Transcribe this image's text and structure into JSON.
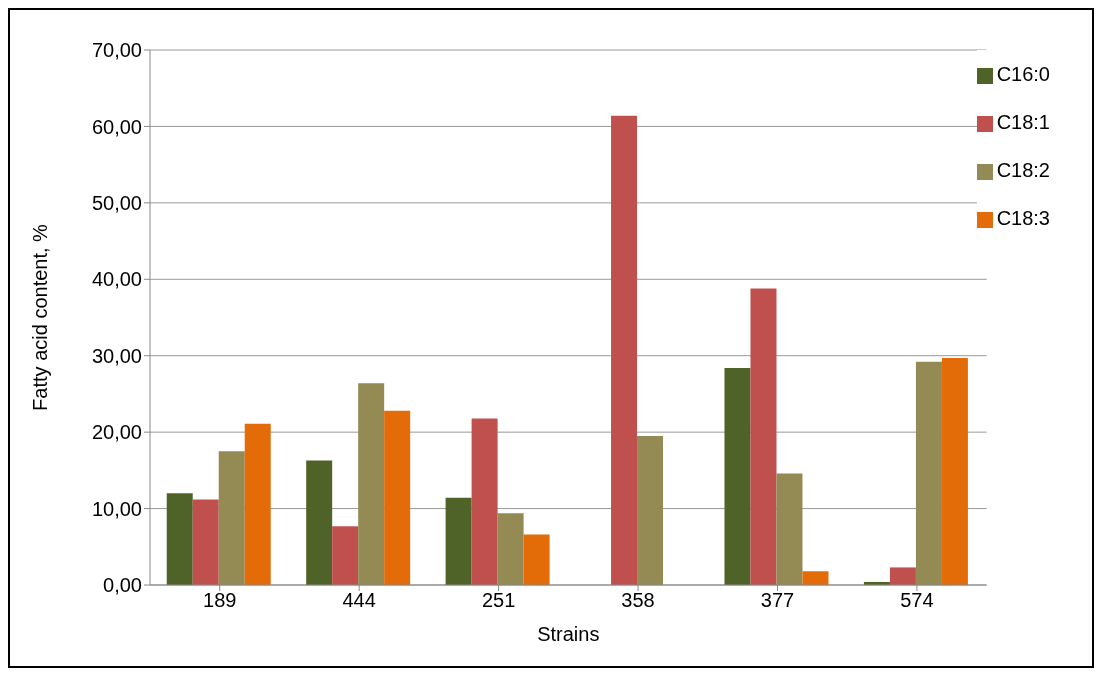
{
  "chart_data": {
    "type": "bar",
    "xlabel": "Strains",
    "ylabel": "Fatty acid content, %",
    "categories": [
      "189",
      "444",
      "251",
      "358",
      "377",
      "574"
    ],
    "series": [
      {
        "name": "C16:0",
        "color": "#4f6228",
        "values": [
          12.0,
          16.3,
          11.4,
          0,
          28.4,
          0.4
        ]
      },
      {
        "name": "C18:1",
        "color": "#c0504d",
        "values": [
          11.2,
          7.7,
          21.8,
          61.4,
          38.8,
          2.3
        ]
      },
      {
        "name": "C18:2",
        "color": "#948a54",
        "values": [
          17.5,
          26.4,
          9.4,
          19.5,
          14.6,
          29.2
        ]
      },
      {
        "name": "C18:3",
        "color": "#e36c09",
        "values": [
          21.1,
          22.8,
          6.6,
          0,
          1.8,
          29.7
        ]
      }
    ],
    "ylim": [
      0,
      70
    ],
    "yticks": [
      {
        "value": 0,
        "label": "0,00"
      },
      {
        "value": 10,
        "label": "10,00"
      },
      {
        "value": 20,
        "label": "20,00"
      },
      {
        "value": 30,
        "label": "30,00"
      },
      {
        "value": 40,
        "label": "40,00"
      },
      {
        "value": 50,
        "label": "50,00"
      },
      {
        "value": 60,
        "label": "60,00"
      },
      {
        "value": 70,
        "label": "70,00"
      }
    ],
    "grid": "y",
    "legend": "top right"
  }
}
